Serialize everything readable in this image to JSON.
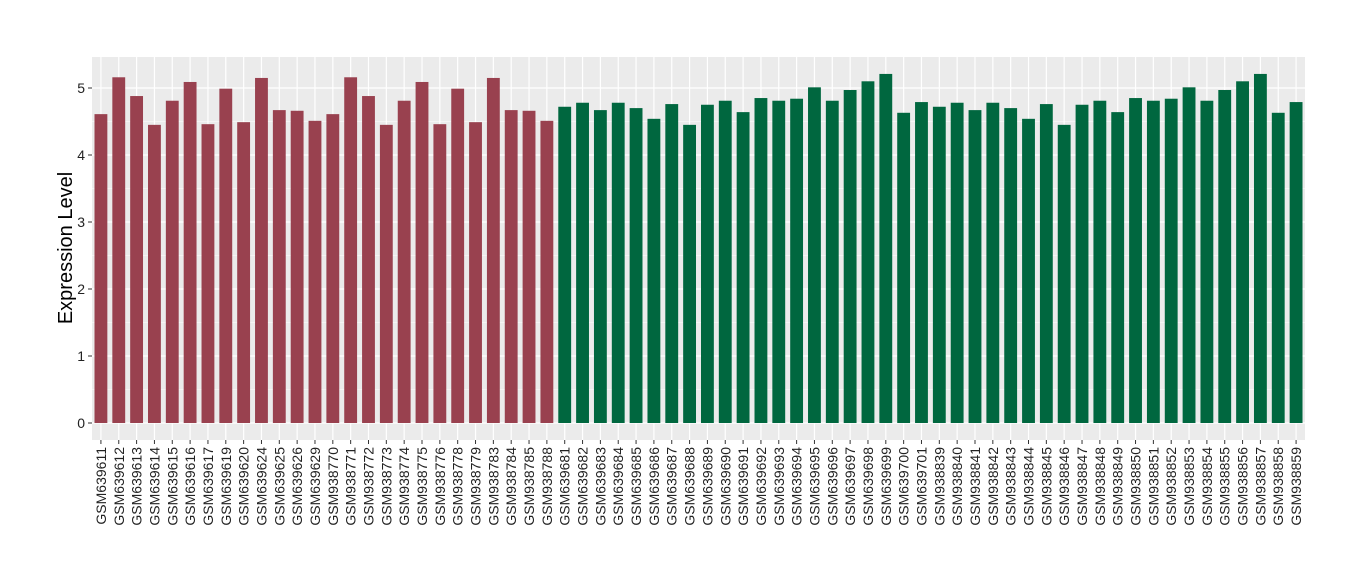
{
  "chart_data": {
    "type": "bar",
    "title": "",
    "xlabel": "",
    "ylabel": "Expression Level",
    "ylim": [
      0,
      5.4
    ],
    "yticks": [
      0,
      1,
      2,
      3,
      4,
      5
    ],
    "grid": true,
    "background": "#EBEBEB",
    "group_colors": [
      "#99414F",
      "#00673F"
    ],
    "categories": [
      "GSM639611",
      "GSM639612",
      "GSM639613",
      "GSM639614",
      "GSM639615",
      "GSM639616",
      "GSM639617",
      "GSM639619",
      "GSM639620",
      "GSM639624",
      "GSM639625",
      "GSM639626",
      "GSM639629",
      "GSM938770",
      "GSM938771",
      "GSM938772",
      "GSM938773",
      "GSM938774",
      "GSM938775",
      "GSM938776",
      "GSM938778",
      "GSM938779",
      "GSM938783",
      "GSM938784",
      "GSM938785",
      "GSM938788",
      "GSM639681",
      "GSM639682",
      "GSM639683",
      "GSM639684",
      "GSM639685",
      "GSM639686",
      "GSM639687",
      "GSM639688",
      "GSM639689",
      "GSM639690",
      "GSM639691",
      "GSM639692",
      "GSM639693",
      "GSM639694",
      "GSM639695",
      "GSM639696",
      "GSM639697",
      "GSM639698",
      "GSM639699",
      "GSM639700",
      "GSM639701",
      "GSM938839",
      "GSM938840",
      "GSM938841",
      "GSM938842",
      "GSM938843",
      "GSM938844",
      "GSM938845",
      "GSM938846",
      "GSM938847",
      "GSM938848",
      "GSM938849",
      "GSM938850",
      "GSM938851",
      "GSM938852",
      "GSM938853",
      "GSM938854",
      "GSM938855",
      "GSM938856",
      "GSM938857",
      "GSM938858",
      "GSM938859"
    ],
    "values": [
      4.61,
      5.16,
      4.88,
      4.45,
      4.81,
      5.09,
      4.46,
      4.99,
      4.49,
      5.15,
      4.67,
      4.66,
      4.51,
      4.61,
      5.16,
      4.88,
      4.45,
      4.81,
      5.09,
      4.46,
      4.99,
      4.49,
      5.15,
      4.67,
      4.66,
      4.51,
      4.72,
      4.78,
      4.67,
      4.78,
      4.7,
      4.54,
      4.76,
      4.45,
      4.75,
      4.81,
      4.64,
      4.85,
      4.81,
      4.84,
      5.01,
      4.81,
      4.97,
      5.1,
      5.21,
      4.63,
      4.79,
      4.72,
      4.78,
      4.67,
      4.78,
      4.7,
      4.54,
      4.76,
      4.45,
      4.75,
      4.81,
      4.64,
      4.85,
      4.81,
      4.84,
      5.01,
      4.81,
      4.97,
      5.1,
      5.21,
      4.63,
      4.79
    ],
    "groups": [
      0,
      0,
      0,
      0,
      0,
      0,
      0,
      0,
      0,
      0,
      0,
      0,
      0,
      0,
      0,
      0,
      0,
      0,
      0,
      0,
      0,
      0,
      0,
      0,
      0,
      0,
      1,
      1,
      1,
      1,
      1,
      1,
      1,
      1,
      1,
      1,
      1,
      1,
      1,
      1,
      1,
      1,
      1,
      1,
      1,
      1,
      1,
      1,
      1,
      1,
      1,
      1,
      1,
      1,
      1,
      1,
      1,
      1,
      1,
      1,
      1,
      1,
      1,
      1,
      1,
      1,
      1,
      1
    ]
  }
}
